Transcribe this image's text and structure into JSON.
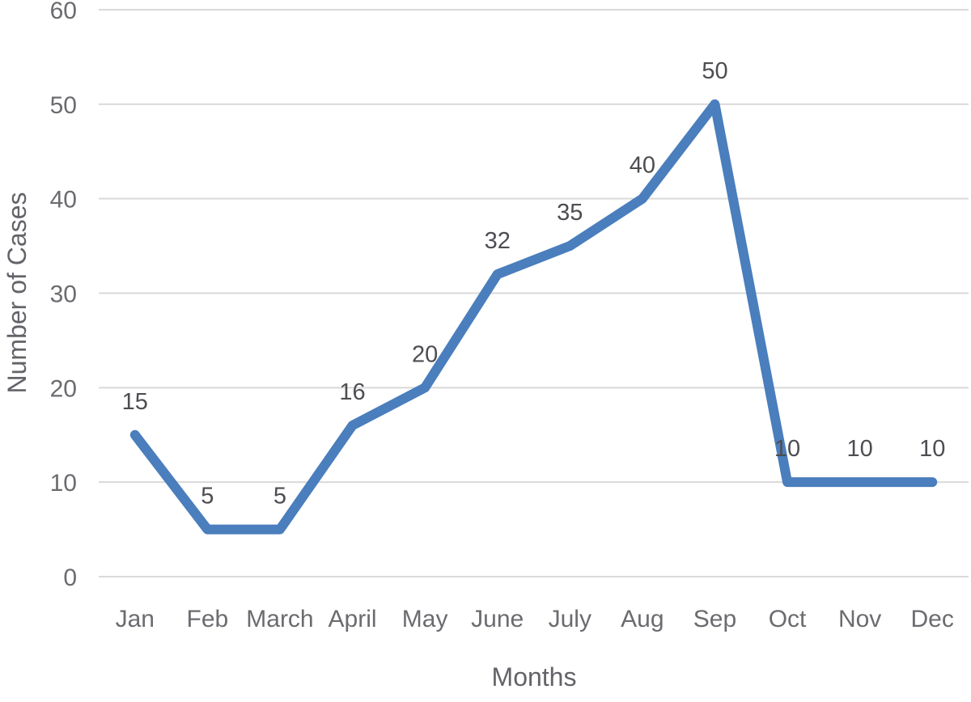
{
  "chart_data": {
    "type": "line",
    "title": "",
    "xlabel": "Months",
    "ylabel": "Number of Cases",
    "categories": [
      "Jan",
      "Feb",
      "March",
      "April",
      "May",
      "June",
      "July",
      "Aug",
      "Sep",
      "Oct",
      "Nov",
      "Dec"
    ],
    "series": [
      {
        "name": "Number of Cases",
        "values": [
          15,
          5,
          5,
          16,
          20,
          32,
          35,
          40,
          50,
          10,
          10,
          10
        ]
      }
    ],
    "data_labels": [
      15,
      5,
      5,
      16,
      20,
      32,
      35,
      40,
      50,
      10,
      10,
      10
    ],
    "ylim": [
      0,
      60
    ],
    "ytick_step": 10,
    "yticks": [
      0,
      10,
      20,
      30,
      40,
      50,
      60
    ],
    "grid": "horizontal",
    "legend_position": "none",
    "colors": {
      "line": "#4A7EBD",
      "gridline": "#D9D9D9",
      "tick_text": "#6B6B70",
      "axis_title_text": "#636369",
      "data_label_text": "#4D4D52",
      "background": "#FFFFFF"
    }
  }
}
